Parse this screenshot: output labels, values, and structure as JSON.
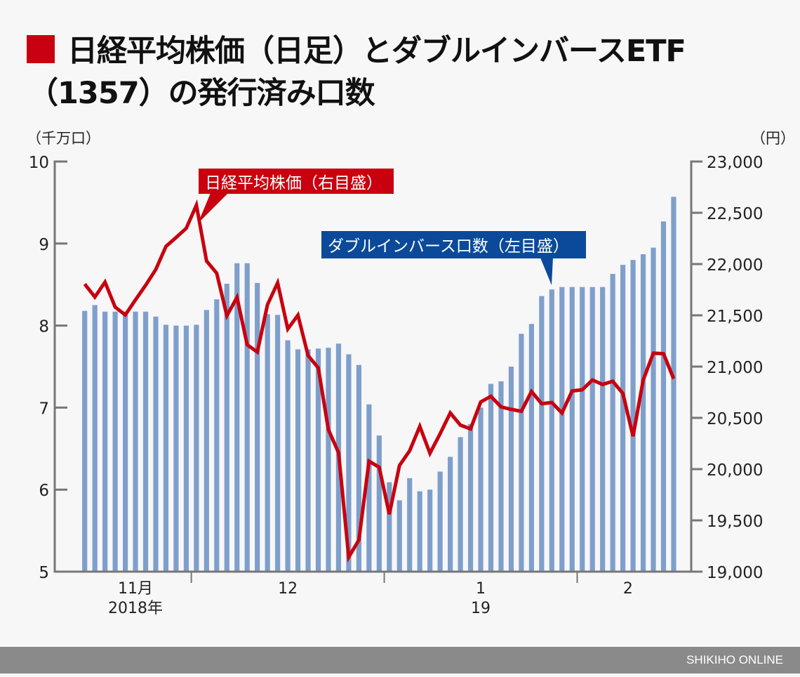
{
  "title": {
    "line1": "日経平均株価（日足）とダブルインバースETF",
    "line2": "（1357）の発行済み口数",
    "marker_color": "#c8000f"
  },
  "footer": {
    "credit": "SHIKIHO ONLINE"
  },
  "chart_data": {
    "type": "bar+line",
    "left_axis": {
      "unit_label": "（千万口）",
      "range": [
        5,
        10
      ],
      "ticks": [
        "10",
        "9",
        "8",
        "7",
        "6",
        "5"
      ]
    },
    "right_axis": {
      "unit_label": "（円）",
      "range": [
        19000,
        23000
      ],
      "ticks": [
        "23,000",
        "22,500",
        "22,000",
        "21,500",
        "21,000",
        "20,500",
        "20,000",
        "19,500",
        "19,000"
      ]
    },
    "x_labels": [
      {
        "line1": "11月",
        "line2": "2018年"
      },
      {
        "line1": "12",
        "line2": ""
      },
      {
        "line1": "1",
        "line2": "19"
      },
      {
        "line1": "2",
        "line2": ""
      }
    ],
    "month_start_index": [
      0,
      11,
      30,
      49
    ],
    "series": [
      {
        "name": "ダブルインバース口数（左目盛）",
        "type": "bar",
        "axis": "left",
        "color": "#7f9fcb",
        "values": [
          8.18,
          8.25,
          8.17,
          8.17,
          8.17,
          8.17,
          8.17,
          8.11,
          8.01,
          8.0,
          8.0,
          8.01,
          8.19,
          8.32,
          8.51,
          8.76,
          8.76,
          8.52,
          8.14,
          8.13,
          7.82,
          7.71,
          7.71,
          7.72,
          7.73,
          7.78,
          7.65,
          7.52,
          7.04,
          6.66,
          6.09,
          5.87,
          6.14,
          5.98,
          6.0,
          6.22,
          6.4,
          6.64,
          6.8,
          7.0,
          7.29,
          7.32,
          7.5,
          7.9,
          8.02,
          8.36,
          8.44,
          8.47,
          8.47,
          8.47,
          8.47,
          8.47,
          8.63,
          8.74,
          8.8,
          8.87,
          8.95,
          9.27,
          9.57
        ]
      },
      {
        "name": "日経平均株価（右目盛）",
        "type": "line",
        "axis": "right",
        "color": "#c8000f",
        "values": [
          21805,
          21679,
          21824,
          21580,
          21504,
          21651,
          21793,
          21947,
          22172,
          22259,
          22349,
          22574,
          22030,
          21911,
          21497,
          21675,
          21213,
          21142,
          21604,
          21817,
          21367,
          21502,
          21107,
          20988,
          20385,
          20160,
          19142,
          19308,
          20077,
          20018,
          19560,
          20036,
          20179,
          20417,
          20155,
          20345,
          20548,
          20429,
          20393,
          20655,
          20710,
          20607,
          20583,
          20564,
          20757,
          20638,
          20650,
          20548,
          20762,
          20774,
          20869,
          20826,
          20857,
          20738,
          20321,
          20869,
          21131,
          21126,
          20881
        ]
      }
    ],
    "grid": false,
    "legend": "callout-labels"
  }
}
